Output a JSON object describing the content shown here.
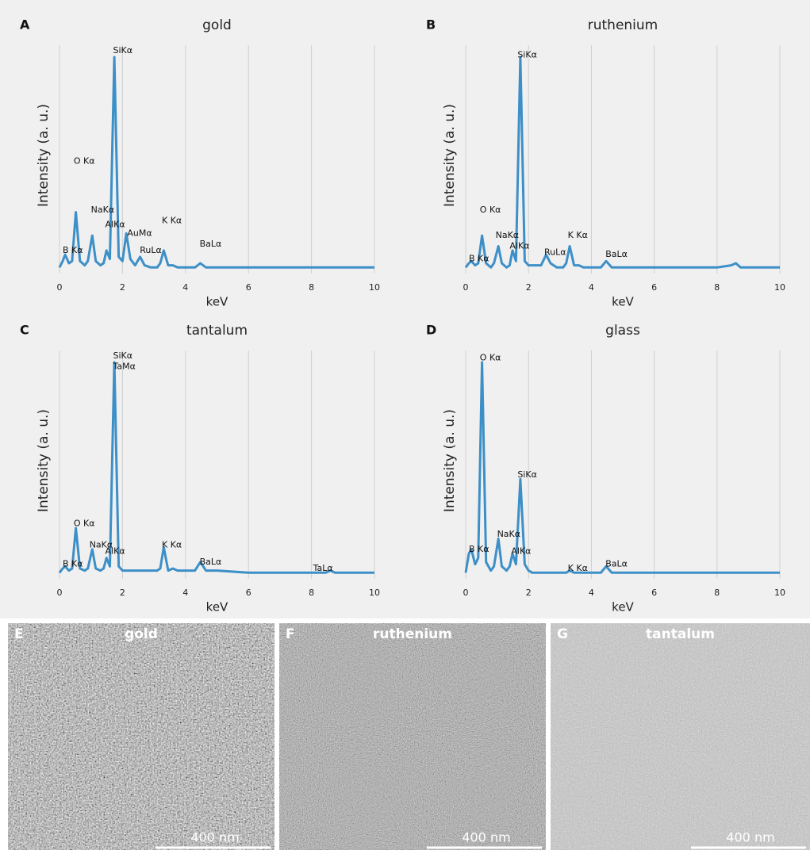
{
  "chart_data": [
    {
      "type": "line",
      "panel": "A",
      "title": "gold",
      "xlabel": "keV",
      "ylabel": "Intensity (a. u.)",
      "color": "#3d8fc7",
      "x": [
        0,
        0.1,
        0.18,
        0.3,
        0.4,
        0.52,
        0.65,
        0.8,
        0.9,
        1.04,
        1.15,
        1.3,
        1.4,
        1.49,
        1.6,
        1.74,
        1.88,
        2.0,
        2.12,
        2.25,
        2.4,
        2.56,
        2.7,
        2.9,
        3.1,
        3.2,
        3.31,
        3.45,
        3.6,
        3.75,
        4.0,
        4.3,
        4.47,
        4.65,
        5,
        6,
        7,
        8,
        8.45,
        8.6,
        8.75,
        9,
        10
      ],
      "values": [
        1,
        4,
        7,
        3,
        4,
        27,
        4,
        2,
        4,
        16,
        4,
        2,
        3,
        9,
        5,
        100,
        6,
        4,
        17,
        5,
        2,
        6,
        2,
        1,
        1,
        3,
        9,
        2,
        2,
        1,
        1,
        1,
        3,
        1,
        1,
        1,
        1,
        1,
        1,
        1,
        1,
        1,
        1
      ],
      "xlim": [
        0,
        10
      ],
      "xticks": [
        0,
        2,
        4,
        6,
        8,
        10
      ],
      "ylim": [
        0,
        100
      ],
      "grid": true,
      "annotations": [
        {
          "text": "SiKα",
          "x": 1.75,
          "y": 103
        },
        {
          "text": "O Kα",
          "x": 0.5,
          "y": 51
        },
        {
          "text": "NaKα",
          "x": 1.05,
          "y": 28
        },
        {
          "text": "AlKα",
          "x": 1.5,
          "y": 21
        },
        {
          "text": "AuMα",
          "x": 2.2,
          "y": 17
        },
        {
          "text": "RuLα",
          "x": 2.6,
          "y": 9
        },
        {
          "text": "K Kα",
          "x": 3.3,
          "y": 23
        },
        {
          "text": "BaLα",
          "x": 4.5,
          "y": 12
        },
        {
          "text": "B Kα",
          "x": 0.15,
          "y": 9
        }
      ]
    },
    {
      "type": "line",
      "panel": "B",
      "title": "ruthenium",
      "xlabel": "keV",
      "ylabel": "Intensity (a. u.)",
      "color": "#3d8fc7",
      "x": [
        0,
        0.1,
        0.18,
        0.3,
        0.4,
        0.52,
        0.65,
        0.8,
        0.9,
        1.04,
        1.15,
        1.3,
        1.4,
        1.49,
        1.6,
        1.74,
        1.88,
        2.0,
        2.12,
        2.25,
        2.4,
        2.56,
        2.7,
        2.9,
        3.1,
        3.2,
        3.31,
        3.45,
        3.6,
        3.75,
        4.0,
        4.3,
        4.47,
        4.65,
        5,
        6,
        7,
        8,
        8.45,
        8.6,
        8.75,
        9,
        10
      ],
      "values": [
        1,
        3,
        4,
        2,
        3,
        16,
        3,
        1,
        3,
        11,
        3,
        1,
        2,
        9,
        4,
        100,
        4,
        2,
        2,
        2,
        2,
        7,
        3,
        1,
        1,
        3,
        11,
        2,
        2,
        1,
        1,
        1,
        4,
        1,
        1,
        1,
        1,
        1,
        2,
        3,
        1,
        1,
        1
      ],
      "xlim": [
        0,
        10
      ],
      "xticks": [
        0,
        2,
        4,
        6,
        8,
        10
      ],
      "ylim": [
        0,
        100
      ],
      "grid": true,
      "annotations": [
        {
          "text": "SiKα",
          "x": 1.7,
          "y": 101
        },
        {
          "text": "O Kα",
          "x": 0.5,
          "y": 28
        },
        {
          "text": "NaKα",
          "x": 1.0,
          "y": 16
        },
        {
          "text": "AlKα",
          "x": 1.45,
          "y": 11
        },
        {
          "text": "RuLα",
          "x": 2.55,
          "y": 8
        },
        {
          "text": "K Kα",
          "x": 3.3,
          "y": 16
        },
        {
          "text": "BaLα",
          "x": 4.5,
          "y": 7
        },
        {
          "text": "B Kα",
          "x": 0.15,
          "y": 5
        }
      ]
    },
    {
      "type": "line",
      "panel": "C",
      "title": "tantalum",
      "xlabel": "keV",
      "ylabel": "Intensity (a. u.)",
      "color": "#3d8fc7",
      "x": [
        0,
        0.1,
        0.18,
        0.3,
        0.4,
        0.52,
        0.65,
        0.8,
        0.9,
        1.04,
        1.15,
        1.3,
        1.4,
        1.49,
        1.6,
        1.74,
        1.88,
        2.0,
        2.12,
        2.25,
        2.4,
        2.56,
        2.7,
        2.9,
        3.1,
        3.2,
        3.31,
        3.45,
        3.6,
        3.75,
        4.0,
        4.3,
        4.47,
        4.65,
        5,
        6,
        7,
        8,
        8.45,
        8.6,
        8.75,
        9,
        10
      ],
      "values": [
        1,
        3,
        4,
        2,
        3,
        22,
        3,
        2,
        3,
        12,
        3,
        2,
        3,
        8,
        4,
        100,
        4,
        2,
        2,
        2,
        2,
        2,
        2,
        2,
        2,
        3,
        13,
        2,
        3,
        2,
        2,
        2,
        6,
        2,
        2,
        1,
        1,
        1,
        1,
        2,
        1,
        1,
        1
      ],
      "xlim": [
        0,
        10
      ],
      "xticks": [
        0,
        2,
        4,
        6,
        8,
        10
      ],
      "ylim": [
        0,
        100
      ],
      "grid": true,
      "annotations": [
        {
          "text": "SiKα",
          "x": 1.75,
          "y": 103
        },
        {
          "text": "TaMα",
          "x": 1.75,
          "y": 98
        },
        {
          "text": "O Kα",
          "x": 0.5,
          "y": 24
        },
        {
          "text": "NaKα",
          "x": 1.0,
          "y": 14
        },
        {
          "text": "AlKα",
          "x": 1.5,
          "y": 11
        },
        {
          "text": "K Kα",
          "x": 3.3,
          "y": 14
        },
        {
          "text": "BaLα",
          "x": 4.5,
          "y": 6
        },
        {
          "text": "TaLα",
          "x": 8.1,
          "y": 3
        },
        {
          "text": "B Kα",
          "x": 0.15,
          "y": 5
        }
      ]
    },
    {
      "type": "line",
      "panel": "D",
      "title": "glass",
      "xlabel": "keV",
      "ylabel": "Intensity (a. u.)",
      "color": "#3d8fc7",
      "x": [
        0,
        0.1,
        0.18,
        0.3,
        0.4,
        0.52,
        0.65,
        0.8,
        0.9,
        1.04,
        1.15,
        1.3,
        1.4,
        1.49,
        1.6,
        1.74,
        1.88,
        2.0,
        2.12,
        2.25,
        2.4,
        2.56,
        2.7,
        2.9,
        3.1,
        3.2,
        3.31,
        3.45,
        3.6,
        3.75,
        4.0,
        4.3,
        4.47,
        4.65,
        5,
        6,
        7,
        8,
        8.45,
        8.6,
        8.75,
        9,
        10
      ],
      "values": [
        1,
        10,
        12,
        5,
        8,
        100,
        6,
        2,
        4,
        17,
        4,
        2,
        4,
        10,
        5,
        45,
        5,
        2,
        1,
        1,
        1,
        1,
        1,
        1,
        1,
        1,
        2,
        1,
        1,
        1,
        1,
        1,
        4,
        1,
        1,
        1,
        1,
        1,
        1,
        1,
        1,
        1,
        1
      ],
      "xlim": [
        0,
        10
      ],
      "xticks": [
        0,
        2,
        4,
        6,
        8,
        10
      ],
      "ylim": [
        0,
        100
      ],
      "grid": true,
      "annotations": [
        {
          "text": "O Kα",
          "x": 0.5,
          "y": 102
        },
        {
          "text": "SiKα",
          "x": 1.7,
          "y": 47
        },
        {
          "text": "NaKα",
          "x": 1.05,
          "y": 19
        },
        {
          "text": "AlKα",
          "x": 1.5,
          "y": 11
        },
        {
          "text": "B Kα",
          "x": 0.15,
          "y": 12
        },
        {
          "text": "K Kα",
          "x": 3.3,
          "y": 3
        },
        {
          "text": "BaLα",
          "x": 4.5,
          "y": 5
        }
      ]
    }
  ],
  "images": [
    {
      "panel": "E",
      "title": "gold",
      "scale_bar": "400 nm"
    },
    {
      "panel": "F",
      "title": "ruthenium",
      "scale_bar": "400 nm"
    },
    {
      "panel": "G",
      "title": "tantalum",
      "scale_bar": "400 nm"
    }
  ]
}
